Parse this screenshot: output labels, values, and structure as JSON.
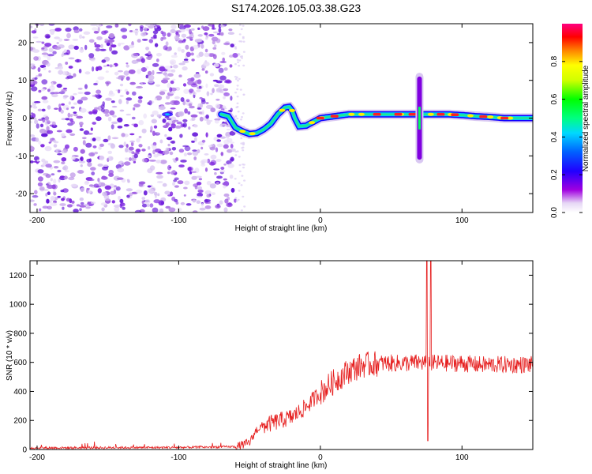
{
  "title": "S174.2026.105.03.38.G23",
  "chart_data": [
    {
      "type": "heatmap",
      "title": "S174.2026.105.03.38.G23",
      "xlabel": "Height of straight line (km)",
      "ylabel": "Frequency (Hz)",
      "xlim": [
        -205,
        150
      ],
      "ylim": [
        -25,
        25
      ],
      "xticks": [
        -200,
        -100,
        0,
        100
      ],
      "yticks": [
        -20,
        -10,
        0,
        10,
        20
      ],
      "colorbar": {
        "label": "Normalized spectral amplitude",
        "range": [
          0,
          1
        ],
        "ticks": [
          0,
          0.2,
          0.4,
          0.6,
          0.8
        ],
        "tick_labels": [
          "0.0",
          "0.2",
          "0.4",
          "0.6",
          "0.8"
        ]
      },
      "noise_region_x": [
        -205,
        -60
      ],
      "ridge": {
        "x": [
          -70,
          -65,
          -60,
          -55,
          -50,
          -45,
          -40,
          -35,
          -30,
          -25,
          -22,
          -20,
          -18,
          -15,
          -10,
          -5,
          0,
          10,
          20,
          30,
          40,
          50,
          60,
          70,
          80,
          90,
          100,
          110,
          120,
          130,
          140,
          150
        ],
        "freq": [
          1,
          0.5,
          -2.5,
          -3.5,
          -4.2,
          -4,
          -3,
          -1.5,
          1,
          2.8,
          3,
          2,
          0,
          -2.2,
          -2,
          -1,
          0,
          0.5,
          1,
          1,
          1,
          1,
          1,
          1,
          1,
          1,
          0.8,
          0.5,
          0.3,
          0,
          0,
          0
        ],
        "peak_x": [
          0,
          10,
          40,
          55,
          65,
          85,
          95,
          115,
          130
        ],
        "spike": {
          "x": 70,
          "freq_range": [
            -12,
            12
          ]
        }
      }
    },
    {
      "type": "line",
      "xlabel": "Height of straight line (km)",
      "ylabel": "SNR (10 * v/v)",
      "xlim": [
        -205,
        150
      ],
      "ylim": [
        0,
        1300
      ],
      "xticks": [
        -200,
        -100,
        0,
        100
      ],
      "yticks": [
        0,
        200,
        400,
        600,
        800,
        1000,
        1200
      ],
      "color": "#e62020",
      "trend": {
        "x": [
          -205,
          -100,
          -60,
          -50,
          -45,
          -40,
          -30,
          -20,
          -10,
          0,
          10,
          20,
          30,
          40,
          50,
          60,
          70,
          80,
          90,
          100,
          110,
          120,
          130,
          140,
          150
        ],
        "y": [
          12,
          15,
          20,
          50,
          140,
          170,
          200,
          230,
          300,
          400,
          480,
          550,
          590,
          600,
          600,
          600,
          605,
          600,
          600,
          600,
          590,
          590,
          590,
          590,
          590
        ]
      },
      "noise_amplitude": 60,
      "spikes": [
        {
          "x": 75,
          "y": 1300
        },
        {
          "x": 78,
          "y": 1300
        },
        {
          "x": 76,
          "y": 60
        }
      ]
    }
  ]
}
